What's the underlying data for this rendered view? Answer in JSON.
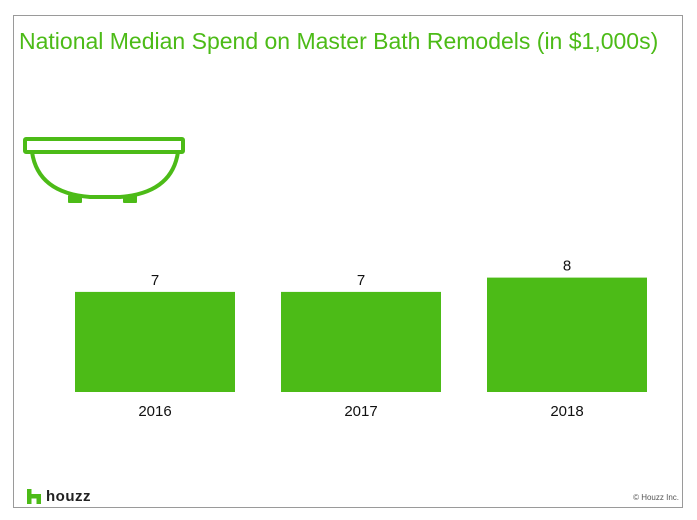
{
  "title": "National Median Spend on Master Bath Remodels (in $1,000s)",
  "colors": {
    "accent": "#4cbb17",
    "text": "#111111",
    "frame": "#9a9a9a"
  },
  "icon": "bathtub-icon",
  "chart_data": {
    "type": "bar",
    "title": "National Median Spend on Master Bath Remodels (in $1,000s)",
    "categories": [
      "2016",
      "2017",
      "2018"
    ],
    "values": [
      7,
      7,
      8
    ],
    "data_labels": [
      "7",
      "7",
      "8"
    ],
    "xlabel": "",
    "ylabel": "",
    "grid": false,
    "legend": "none"
  },
  "branding": {
    "logo_text": "houzz",
    "copyright": "© Houzz Inc."
  }
}
